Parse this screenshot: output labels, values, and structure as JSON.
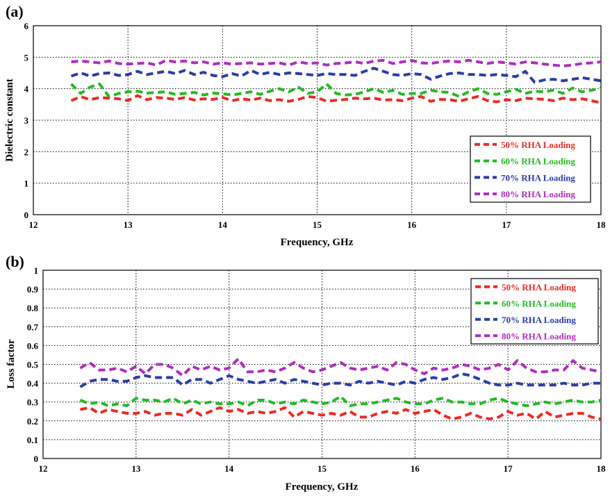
{
  "chart_data": [
    {
      "panel_label": "(a)",
      "type": "line",
      "xlabel": "Frequency, GHz",
      "ylabel": "Dielectric constant",
      "xlim": [
        12,
        18
      ],
      "ylim": [
        0,
        6
      ],
      "xticks": [
        "12",
        "13",
        "14",
        "15",
        "16",
        "17",
        "18"
      ],
      "yticks": [
        "0",
        "1",
        "2",
        "3",
        "4",
        "5",
        "6"
      ],
      "grid": true,
      "legend_position": "lower-right",
      "x": [
        12.4,
        12.5,
        12.6,
        12.7,
        12.8,
        12.9,
        13.0,
        13.1,
        13.2,
        13.3,
        13.4,
        13.5,
        13.6,
        13.7,
        13.8,
        13.9,
        14.0,
        14.1,
        14.2,
        14.3,
        14.4,
        14.5,
        14.6,
        14.7,
        14.8,
        14.9,
        15.0,
        15.1,
        15.2,
        15.3,
        15.4,
        15.5,
        15.6,
        15.7,
        15.8,
        15.9,
        16.0,
        16.1,
        16.2,
        16.3,
        16.4,
        16.5,
        16.6,
        16.7,
        16.8,
        16.9,
        17.0,
        17.1,
        17.2,
        17.3,
        17.4,
        17.5,
        17.6,
        17.7,
        17.8,
        17.9,
        18.0
      ],
      "series": [
        {
          "name": "50% RHA Loading",
          "color": "#ee2a24",
          "values": [
            3.62,
            3.75,
            3.65,
            3.72,
            3.7,
            3.68,
            3.62,
            3.78,
            3.65,
            3.72,
            3.7,
            3.66,
            3.72,
            3.64,
            3.68,
            3.66,
            3.72,
            3.62,
            3.68,
            3.64,
            3.7,
            3.62,
            3.65,
            3.6,
            3.66,
            3.75,
            3.72,
            3.6,
            3.63,
            3.66,
            3.7,
            3.68,
            3.7,
            3.64,
            3.65,
            3.62,
            3.7,
            3.75,
            3.6,
            3.66,
            3.65,
            3.6,
            3.68,
            3.75,
            3.62,
            3.58,
            3.65,
            3.62,
            3.7,
            3.68,
            3.66,
            3.62,
            3.7,
            3.65,
            3.68,
            3.62,
            3.55
          ]
        },
        {
          "name": "60% RHA Loading",
          "color": "#22bb22",
          "values": [
            4.15,
            3.85,
            4.05,
            4.15,
            3.75,
            3.85,
            3.9,
            3.92,
            3.86,
            3.88,
            3.9,
            3.82,
            3.85,
            3.88,
            3.8,
            3.86,
            3.84,
            3.8,
            3.85,
            3.9,
            3.82,
            3.92,
            4.0,
            3.9,
            4.05,
            3.85,
            3.9,
            4.15,
            3.85,
            3.8,
            3.82,
            3.9,
            4.0,
            3.88,
            3.95,
            3.82,
            3.85,
            3.85,
            3.95,
            3.9,
            3.88,
            3.75,
            3.9,
            4.0,
            3.85,
            3.82,
            3.9,
            3.98,
            3.85,
            3.92,
            3.9,
            3.95,
            3.85,
            4.02,
            3.9,
            3.95,
            4.02
          ]
        },
        {
          "name": "70% RHA Loading",
          "color": "#2b3ea7",
          "values": [
            4.4,
            4.5,
            4.4,
            4.48,
            4.5,
            4.42,
            4.45,
            4.55,
            4.45,
            4.5,
            4.55,
            4.48,
            4.58,
            4.45,
            4.52,
            4.42,
            4.38,
            4.48,
            4.4,
            4.58,
            4.45,
            4.52,
            4.45,
            4.5,
            4.48,
            4.45,
            4.42,
            4.48,
            4.45,
            4.45,
            4.42,
            4.55,
            4.65,
            4.55,
            4.45,
            4.42,
            4.48,
            4.45,
            4.3,
            4.4,
            4.48,
            4.5,
            4.45,
            4.45,
            4.42,
            4.45,
            4.42,
            4.38,
            4.55,
            4.2,
            4.28,
            4.3,
            4.25,
            4.3,
            4.35,
            4.3,
            4.25
          ]
        },
        {
          "name": "80% RHA Loading",
          "color": "#b02dbf",
          "values": [
            4.85,
            4.88,
            4.85,
            4.82,
            4.88,
            4.8,
            4.78,
            4.8,
            4.82,
            4.75,
            4.9,
            4.85,
            4.88,
            4.82,
            4.85,
            4.78,
            4.82,
            4.78,
            4.8,
            4.82,
            4.78,
            4.8,
            4.82,
            4.75,
            4.85,
            4.8,
            4.82,
            4.75,
            4.8,
            4.82,
            4.85,
            4.8,
            4.88,
            4.9,
            4.8,
            4.85,
            4.9,
            4.82,
            4.8,
            4.85,
            4.88,
            4.85,
            4.9,
            4.85,
            4.8,
            4.85,
            4.82,
            4.78,
            4.85,
            4.82,
            4.78,
            4.75,
            4.72,
            4.75,
            4.8,
            4.82,
            4.85
          ]
        }
      ]
    },
    {
      "panel_label": "(b)",
      "type": "line",
      "xlabel": "Frequency, GHz",
      "ylabel": "Loss factor",
      "xlim": [
        12,
        18
      ],
      "ylim": [
        0,
        1
      ],
      "xticks": [
        "12",
        "13",
        "14",
        "15",
        "16",
        "17",
        "18"
      ],
      "yticks": [
        "0",
        "0.1",
        "0.2",
        "0.3",
        "0.4",
        "0.5",
        "0.6",
        "0.7",
        "0.8",
        "0.9",
        "1"
      ],
      "grid": true,
      "legend_position": "upper-right",
      "x": [
        12.4,
        12.5,
        12.6,
        12.7,
        12.8,
        12.9,
        13.0,
        13.1,
        13.2,
        13.3,
        13.4,
        13.5,
        13.6,
        13.7,
        13.8,
        13.9,
        14.0,
        14.1,
        14.2,
        14.3,
        14.4,
        14.5,
        14.6,
        14.7,
        14.8,
        14.9,
        15.0,
        15.1,
        15.2,
        15.3,
        15.4,
        15.5,
        15.6,
        15.7,
        15.8,
        15.9,
        16.0,
        16.1,
        16.2,
        16.3,
        16.4,
        16.5,
        16.6,
        16.7,
        16.8,
        16.9,
        17.0,
        17.1,
        17.2,
        17.3,
        17.4,
        17.5,
        17.6,
        17.7,
        17.8,
        17.9,
        18.0
      ],
      "series": [
        {
          "name": "50% RHA Loading",
          "color": "#ee2a24",
          "values": [
            0.26,
            0.27,
            0.24,
            0.26,
            0.25,
            0.24,
            0.24,
            0.25,
            0.23,
            0.24,
            0.24,
            0.23,
            0.26,
            0.23,
            0.25,
            0.27,
            0.25,
            0.26,
            0.24,
            0.25,
            0.24,
            0.25,
            0.27,
            0.22,
            0.25,
            0.24,
            0.23,
            0.24,
            0.23,
            0.25,
            0.22,
            0.22,
            0.24,
            0.25,
            0.24,
            0.26,
            0.24,
            0.25,
            0.26,
            0.23,
            0.21,
            0.22,
            0.24,
            0.22,
            0.21,
            0.22,
            0.25,
            0.23,
            0.24,
            0.21,
            0.25,
            0.22,
            0.23,
            0.24,
            0.24,
            0.22,
            0.21
          ]
        },
        {
          "name": "60% RHA Loading",
          "color": "#22bb22",
          "values": [
            0.31,
            0.29,
            0.3,
            0.28,
            0.29,
            0.28,
            0.32,
            0.31,
            0.31,
            0.3,
            0.32,
            0.29,
            0.31,
            0.29,
            0.3,
            0.29,
            0.29,
            0.3,
            0.28,
            0.31,
            0.31,
            0.29,
            0.3,
            0.29,
            0.31,
            0.3,
            0.29,
            0.3,
            0.33,
            0.28,
            0.29,
            0.29,
            0.3,
            0.31,
            0.32,
            0.3,
            0.29,
            0.29,
            0.31,
            0.32,
            0.3,
            0.3,
            0.29,
            0.29,
            0.31,
            0.32,
            0.3,
            0.29,
            0.28,
            0.29,
            0.3,
            0.29,
            0.3,
            0.31,
            0.3,
            0.3,
            0.31
          ]
        },
        {
          "name": "70% RHA Loading",
          "color": "#2b3ea7",
          "values": [
            0.38,
            0.41,
            0.42,
            0.42,
            0.41,
            0.41,
            0.43,
            0.44,
            0.43,
            0.43,
            0.43,
            0.39,
            0.42,
            0.42,
            0.4,
            0.42,
            0.44,
            0.42,
            0.41,
            0.4,
            0.41,
            0.42,
            0.4,
            0.42,
            0.41,
            0.4,
            0.39,
            0.4,
            0.4,
            0.39,
            0.41,
            0.4,
            0.41,
            0.4,
            0.39,
            0.41,
            0.4,
            0.42,
            0.43,
            0.42,
            0.43,
            0.45,
            0.44,
            0.42,
            0.4,
            0.39,
            0.39,
            0.4,
            0.39,
            0.39,
            0.39,
            0.39,
            0.4,
            0.39,
            0.39,
            0.4,
            0.4
          ]
        },
        {
          "name": "80% RHA Loading",
          "color": "#b02dbf",
          "values": [
            0.48,
            0.51,
            0.47,
            0.47,
            0.48,
            0.46,
            0.49,
            0.45,
            0.5,
            0.5,
            0.48,
            0.44,
            0.49,
            0.47,
            0.49,
            0.47,
            0.48,
            0.53,
            0.46,
            0.46,
            0.47,
            0.46,
            0.48,
            0.51,
            0.48,
            0.46,
            0.47,
            0.49,
            0.51,
            0.48,
            0.47,
            0.48,
            0.49,
            0.47,
            0.51,
            0.5,
            0.47,
            0.45,
            0.48,
            0.47,
            0.48,
            0.5,
            0.49,
            0.47,
            0.48,
            0.5,
            0.47,
            0.52,
            0.48,
            0.46,
            0.46,
            0.47,
            0.47,
            0.52,
            0.48,
            0.47,
            0.46
          ]
        }
      ]
    }
  ]
}
